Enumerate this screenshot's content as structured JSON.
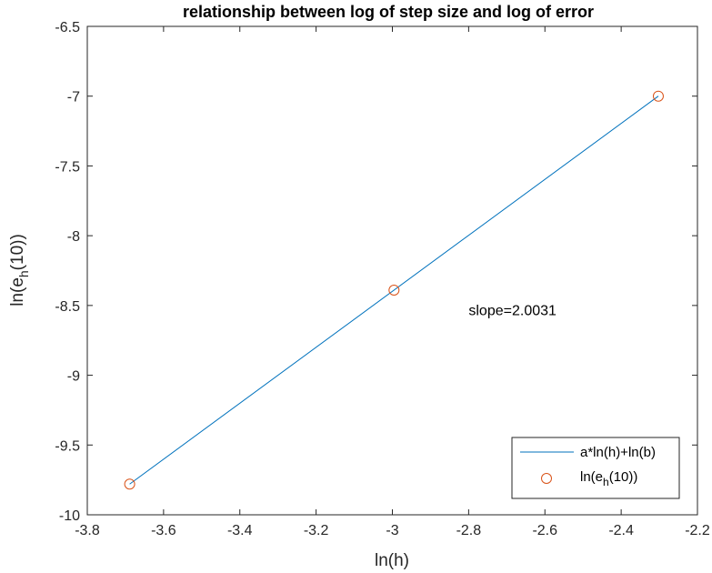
{
  "chart_data": {
    "type": "line",
    "title": "relationship between log of step size and log of error",
    "xlabel": "ln(h)",
    "ylabel": {
      "main": "ln(e",
      "sub": "h",
      "tail": "(10))"
    },
    "xlim": [
      -3.8,
      -2.2
    ],
    "ylim": [
      -10,
      -6.5
    ],
    "xticks": [
      -3.8,
      -3.6,
      -3.4,
      -3.2,
      -3.0,
      -2.8,
      -2.6,
      -2.4,
      -2.2
    ],
    "xtick_labels": [
      "-3.8",
      "-3.6",
      "-3.4",
      "-3.2",
      "-3",
      "-2.8",
      "-2.6",
      "-2.4",
      "-2.2"
    ],
    "yticks": [
      -6.5,
      -7,
      -7.5,
      -8,
      -8.5,
      -9,
      -9.5,
      -10
    ],
    "ytick_labels": [
      "-6.5",
      "-7",
      "-7.5",
      "-8",
      "-8.5",
      "-9",
      "-9.5",
      "-10"
    ],
    "grid": false,
    "legend_position": "bottom-right",
    "series": [
      {
        "name": "a*ln(h)+ln(b)",
        "kind": "line",
        "color": "#0072BD",
        "x": [
          -3.6889,
          -2.3026
        ],
        "y": [
          -9.78,
          -7.0
        ]
      },
      {
        "name": {
          "main": "ln(e",
          "sub": "h",
          "tail": "(10))"
        },
        "kind": "markers",
        "marker": "circle-open",
        "color": "#D95319",
        "x": [
          -3.6889,
          -2.9957,
          -2.3026
        ],
        "y": [
          -9.78,
          -8.39,
          -7.0
        ]
      }
    ],
    "annotations": [
      {
        "text": "slope=2.0031",
        "x": -2.8,
        "y": -8.53
      }
    ]
  }
}
